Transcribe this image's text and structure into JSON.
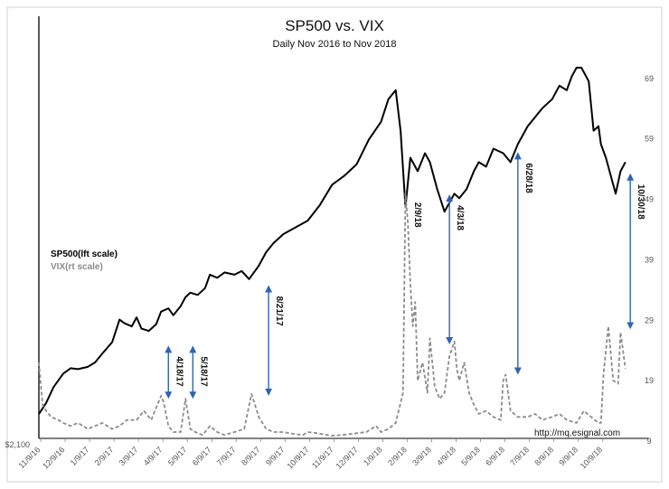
{
  "chart_data": {
    "type": "line",
    "title": "SP500 vs. VIX",
    "subtitle": "Daily Nov 2016 to Nov 2018",
    "left_axis": {
      "min_label": "$2,100",
      "range": [
        2100,
        2960
      ]
    },
    "right_axis": {
      "ticks": [
        9,
        19,
        29,
        39,
        49,
        59,
        69
      ],
      "range": [
        9,
        73
      ]
    },
    "x_tick_labels": [
      "11/9/16",
      "12/9/16",
      "1/9/17",
      "2/9/17",
      "3/9/17",
      "4/9/17",
      "5/9/17",
      "6/9/17",
      "7/9/17",
      "8/9/17",
      "9/9/17",
      "10/9/17",
      "11/9/17",
      "12/9/17",
      "1/9/18",
      "2/9/18",
      "3/9/18",
      "4/9/18",
      "5/9/18",
      "6/9/18",
      "7/9/18",
      "8/9/18",
      "9/9/18",
      "10/9/18"
    ],
    "legend": [
      {
        "name": "SP500(lft scale)",
        "color": "#000000"
      },
      {
        "name": "VIX(rt scale)",
        "color": "#8c8c8c"
      }
    ],
    "series": [
      {
        "name": "SP500",
        "axis": "left",
        "x_month": [
          0,
          0.3,
          0.6,
          1,
          1.3,
          1.6,
          2,
          2.3,
          2.6,
          3,
          3.3,
          3.5,
          3.8,
          4,
          4.2,
          4.5,
          4.8,
          5,
          5.3,
          5.5,
          5.8,
          6,
          6.2,
          6.5,
          6.8,
          7,
          7.3,
          7.6,
          8,
          8.3,
          8.6,
          9,
          9.3,
          9.6,
          10,
          10.5,
          11,
          11.5,
          12,
          12.5,
          13,
          13.5,
          14,
          14.3,
          14.6,
          14.8,
          15,
          15.2,
          15.5,
          15.8,
          16,
          16.3,
          16.6,
          17,
          17.2,
          17.5,
          17.8,
          18,
          18.3,
          18.6,
          19,
          19.3,
          19.6,
          20,
          20.3,
          20.6,
          21,
          21.3,
          21.6,
          21.8,
          22,
          22.2,
          22.5,
          22.7,
          22.9,
          23,
          23.2,
          23.4,
          23.6,
          23.8,
          24
        ],
        "values": [
          2160,
          2185,
          2220,
          2250,
          2262,
          2260,
          2265,
          2275,
          2295,
          2320,
          2370,
          2362,
          2355,
          2375,
          2350,
          2345,
          2360,
          2388,
          2395,
          2380,
          2400,
          2420,
          2430,
          2425,
          2440,
          2470,
          2463,
          2475,
          2470,
          2478,
          2460,
          2490,
          2520,
          2540,
          2560,
          2575,
          2590,
          2625,
          2670,
          2690,
          2715,
          2770,
          2810,
          2860,
          2880,
          2790,
          2620,
          2730,
          2700,
          2740,
          2720,
          2660,
          2610,
          2650,
          2640,
          2660,
          2700,
          2720,
          2710,
          2750,
          2740,
          2720,
          2760,
          2800,
          2820,
          2840,
          2860,
          2890,
          2880,
          2910,
          2930,
          2930,
          2900,
          2790,
          2800,
          2760,
          2730,
          2690,
          2650,
          2700,
          2720
        ]
      },
      {
        "name": "VIX",
        "axis": "right",
        "x_month": [
          0,
          0.15,
          0.3,
          0.5,
          0.8,
          1,
          1.3,
          1.6,
          2,
          2.3,
          2.6,
          3,
          3.3,
          3.6,
          4,
          4.3,
          4.6,
          5,
          5.1,
          5.3,
          5.5,
          5.8,
          6,
          6.2,
          6.4,
          6.7,
          7,
          7.3,
          7.6,
          8,
          8.4,
          8.7,
          9,
          9.3,
          9.6,
          10,
          10.4,
          10.8,
          11,
          11.4,
          11.8,
          12,
          12.4,
          12.8,
          13,
          13.4,
          13.8,
          14,
          14.3,
          14.6,
          14.9,
          15,
          15.1,
          15.2,
          15.3,
          15.4,
          15.5,
          15.7,
          15.9,
          16,
          16.2,
          16.4,
          16.6,
          16.8,
          17,
          17.1,
          17.2,
          17.4,
          17.6,
          17.8,
          18,
          18.3,
          18.6,
          18.9,
          19,
          19.1,
          19.3,
          19.6,
          20,
          20.3,
          20.6,
          21,
          21.3,
          21.6,
          22,
          22.3,
          22.6,
          22.9,
          23,
          23.1,
          23.3,
          23.5,
          23.7,
          23.8,
          24
        ],
        "values": [
          22,
          15,
          14,
          13,
          12.5,
          12,
          11.5,
          12,
          11,
          11.5,
          12,
          11,
          11.5,
          12.5,
          12.5,
          14,
          12.5,
          16.5,
          15.5,
          11.5,
          10.5,
          10.5,
          16,
          11,
          10.5,
          10,
          11.5,
          10.5,
          10,
          10.5,
          11,
          16.8,
          13,
          11,
          10.5,
          10.5,
          10.2,
          10,
          10.5,
          10.3,
          10,
          9.9,
          10,
          10.2,
          10.3,
          10.5,
          11.5,
          10.5,
          11,
          12,
          17,
          50,
          45,
          35,
          28,
          32,
          19,
          22,
          17,
          26,
          18,
          16,
          17,
          23,
          25.5,
          21,
          19,
          22,
          17,
          15,
          13.5,
          14,
          13,
          12.5,
          19,
          20,
          14,
          13,
          13,
          13.5,
          12.5,
          13,
          13.5,
          12.5,
          12,
          14,
          13,
          12,
          12,
          20,
          28,
          19,
          18.5,
          27,
          21
        ]
      }
    ],
    "annotations": [
      {
        "label": "4/18/17",
        "x_month": 5.3,
        "from_y": 16,
        "to_y": 17,
        "arrow_top_y": 24.5
      },
      {
        "label": "5/18/17",
        "x_month": 6.3,
        "from_y": 16,
        "to_y": 17,
        "arrow_top_y": 24.5
      },
      {
        "label": "8/21/17",
        "x_month": 9.4,
        "from_y": 16.5,
        "to_y": 17,
        "arrow_top_y": 34.5
      },
      {
        "label": "2/9/18",
        "x_month": 15.05,
        "from_y": 50,
        "to_y": 50,
        "arrow_top_y": 50
      },
      {
        "label": "4/3/18",
        "x_month": 16.8,
        "from_y": 25,
        "to_y": 25,
        "arrow_top_y": 49.5
      },
      {
        "label": "6/28/18",
        "x_month": 19.6,
        "from_y": 20,
        "to_y": 20,
        "arrow_top_y": 56.5
      },
      {
        "label": "10/30/18",
        "x_month": 24.2,
        "from_y": 27.5,
        "to_y": 27.5,
        "arrow_top_y": 53
      }
    ],
    "source_text": "http://mq.esignal.com"
  }
}
